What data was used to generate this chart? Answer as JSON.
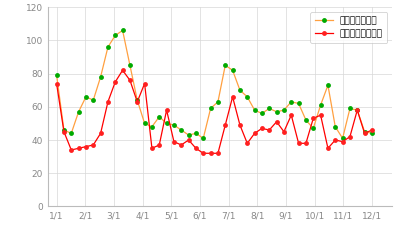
{
  "sea_label": "ディズニーシー",
  "land_label": "ディズニーランド",
  "sea_color": "#FFA040",
  "land_color": "#FF0000",
  "marker_color_sea": "#00AA00",
  "marker_color_land": "#FF2020",
  "ylim": [
    0,
    120
  ],
  "yticks": [
    0,
    20,
    40,
    60,
    80,
    100,
    120
  ],
  "xtick_labels": [
    "1/1",
    "2/1",
    "3/1",
    "4/1",
    "5/1",
    "6/1",
    "7/1",
    "8/1",
    "9/1",
    "10/1",
    "11/1",
    "12/1"
  ],
  "sea": [
    79,
    46,
    44,
    57,
    66,
    64,
    78,
    96,
    103,
    106,
    85,
    64,
    50,
    48,
    54,
    50,
    49,
    46,
    43,
    44,
    41,
    59,
    63,
    85,
    82,
    70,
    66,
    58,
    56,
    59,
    57,
    58,
    63,
    62,
    52,
    47,
    61,
    73,
    48,
    41,
    59,
    58,
    45,
    44
  ],
  "land": [
    74,
    45,
    34,
    35,
    36,
    37,
    44,
    63,
    75,
    82,
    76,
    63,
    74,
    35,
    37,
    58,
    39,
    37,
    40,
    35,
    32,
    32,
    32,
    49,
    66,
    49,
    38,
    44,
    47,
    46,
    51,
    45,
    55,
    38,
    38,
    53,
    55,
    35,
    40,
    39,
    42,
    58,
    44,
    46
  ],
  "background": "#FFFFFF",
  "grid_color": "#D8D8D8",
  "tick_color": "#888888",
  "spine_color": "#BBBBBB"
}
